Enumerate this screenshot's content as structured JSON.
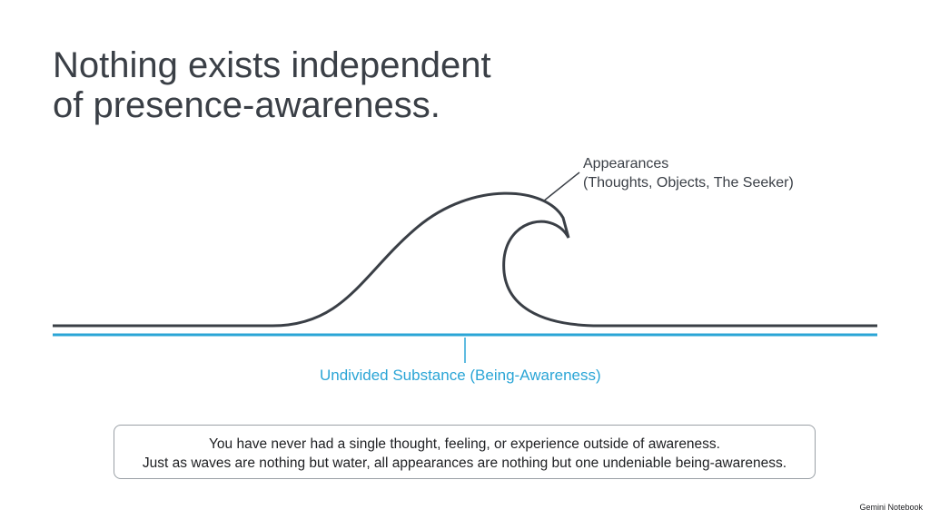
{
  "title": [
    "Nothing exists independent",
    "of presence-awareness."
  ],
  "wave_label": [
    "Appearances",
    "(Thoughts, Objects, The Seeker)"
  ],
  "substance_label": "Undivided Substance (Being-Awareness)",
  "caption": [
    "You have never had a single thought, feeling, or experience outside of awareness.",
    "Just as waves are nothing but water, all appearances are nothing but one undeniable being-awareness."
  ],
  "brand": "Gemini Notebook"
}
